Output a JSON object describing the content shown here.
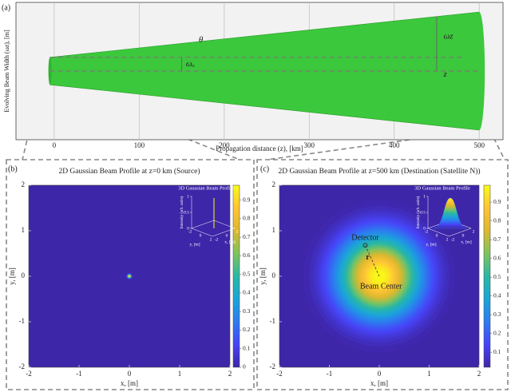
{
  "chart_data": [
    {
      "type": "area",
      "panel_label": "(a)",
      "xlabel": "Propagation distance (z), [km]",
      "ylabel": "Evolving Beam Width (ωz), [m]",
      "x": [
        -5,
        500
      ],
      "upper": [
        0.2,
        0.86
      ],
      "lower": [
        -0.2,
        -0.86
      ],
      "color": "#3cc83c",
      "xlim": [
        -45,
        528
      ],
      "ylim": [
        -1,
        1
      ],
      "xticks": [
        0,
        100,
        200,
        300,
        400,
        500
      ],
      "grid": true,
      "annotations": [
        "θ",
        "ωₒ",
        "ωz",
        "z"
      ]
    },
    {
      "type": "heatmap",
      "panel_label": "(b)",
      "title": "2D Gaussian Beam Profile at z=0 km (Source)",
      "xlabel": "x, [m]",
      "ylabel": "y, [m]",
      "xlim": [
        -2,
        2
      ],
      "ylim": [
        -2,
        2
      ],
      "xticks": [
        -2,
        -1,
        0,
        1,
        2
      ],
      "yticks": [
        -2,
        -1,
        0,
        1,
        2
      ],
      "beam_center": [
        0,
        0
      ],
      "beam_width": 0.05,
      "clim": [
        0,
        0.98
      ],
      "cticks": [
        0,
        0.1,
        0.2,
        0.3,
        0.4,
        0.5,
        0.6,
        0.7,
        0.8,
        0.9
      ],
      "inset": {
        "title": "3D Gaussian Beam Profile",
        "zlabel": "Intensity (arb. units)",
        "xlabel": "x, [m]",
        "ylabel": "y, [m]",
        "zticks": [
          0,
          0.5,
          1
        ],
        "xticks": [
          -2,
          0,
          2
        ],
        "yticks": [
          -2,
          0,
          2
        ]
      }
    },
    {
      "type": "heatmap",
      "panel_label": "(c)",
      "title": "2D Gaussian Beam Profile at z=500 km (Destination (Satellite N))",
      "xlabel": "x, [m]",
      "ylabel": "y, [m]",
      "xlim": [
        -2,
        2
      ],
      "ylim": [
        -2,
        2
      ],
      "xticks": [
        -2,
        -1,
        0,
        1,
        2
      ],
      "yticks": [
        -2,
        -1,
        0,
        1,
        2
      ],
      "beam_center": [
        0,
        0
      ],
      "beam_width": 1.15,
      "clim": [
        0.02,
        0.99
      ],
      "cticks": [
        0.1,
        0.2,
        0.3,
        0.4,
        0.5,
        0.6,
        0.7,
        0.8,
        0.9
      ],
      "detector": [
        -0.28,
        0.68
      ],
      "annotations": [
        "Detector",
        "r",
        "Beam Center"
      ],
      "inset": {
        "title": "3D Gaussian Beam Profile",
        "zlabel": "Intensity (arb. units)",
        "xlabel": "x, [m]",
        "ylabel": "y, [m]",
        "zticks": [
          0,
          0.5,
          1
        ],
        "xticks": [
          -2,
          0,
          2
        ],
        "yticks": [
          -2,
          0,
          2
        ]
      }
    }
  ]
}
